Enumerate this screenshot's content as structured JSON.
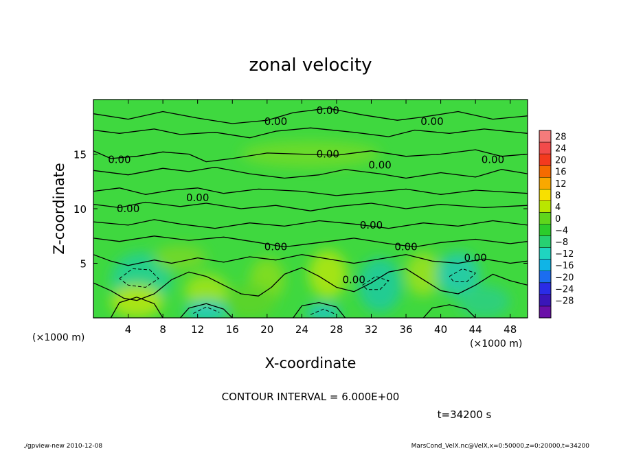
{
  "chart_data": {
    "type": "heatmap",
    "title": "zonal velocity",
    "xlabel": "X-coordinate",
    "ylabel": "Z-coordinate",
    "x_unit": "(×1000 m)",
    "y_unit": "(×1000 m)",
    "xlim": [
      0,
      50
    ],
    "ylim": [
      0,
      20
    ],
    "x_ticks": [
      4,
      8,
      12,
      16,
      20,
      24,
      28,
      32,
      36,
      40,
      44,
      48
    ],
    "y_ticks": [
      5,
      10,
      15
    ],
    "contour_interval_text": "CONTOUR INTERVAL = 6.000E+00",
    "time_text": "t=34200 s",
    "contour_label": "0.00",
    "contour_label_positions": [
      [
        27,
        19
      ],
      [
        21,
        18
      ],
      [
        39,
        18
      ],
      [
        3,
        14.5
      ],
      [
        27,
        15
      ],
      [
        33,
        14
      ],
      [
        46,
        14.5
      ],
      [
        12,
        11
      ],
      [
        4,
        10
      ],
      [
        32,
        8.5
      ],
      [
        21,
        6.5
      ],
      [
        36,
        6.5
      ],
      [
        44,
        5.5
      ],
      [
        30,
        3.5
      ]
    ],
    "colorbar": {
      "levels": [
        28,
        24,
        20,
        16,
        12,
        8,
        4,
        0,
        -4,
        -8,
        -12,
        -16,
        -20,
        -24,
        -28
      ],
      "colors": [
        "#f47b7b",
        "#f24a4a",
        "#f43a1e",
        "#f56b00",
        "#f9a800",
        "#f8e000",
        "#b9e600",
        "#5fd61c",
        "#2bcc2b",
        "#27d072",
        "#1fd4c0",
        "#10b4e6",
        "#1b6df0",
        "#2a2ce6",
        "#3a16b9",
        "#6a10a8"
      ]
    },
    "field_base_color": "#3fd83f",
    "blobs": [
      {
        "x": 5.5,
        "z": 3.5,
        "rx": 3.5,
        "rz": 2.5,
        "color": "#28d08a"
      },
      {
        "x": 13,
        "z": 2.5,
        "rx": 2.5,
        "rz": 1.5,
        "color": "#95e21c"
      },
      {
        "x": 5,
        "z": 1.5,
        "rx": 3,
        "rz": 1.5,
        "color": "#a8e416"
      },
      {
        "x": 13,
        "z": 0.6,
        "rx": 2.5,
        "rz": 1.0,
        "color": "#22ccb0"
      },
      {
        "x": 20,
        "z": 3.5,
        "rx": 2,
        "rz": 2,
        "color": "#7ddc24"
      },
      {
        "x": 27,
        "z": 4,
        "rx": 2.2,
        "rz": 2.2,
        "color": "#a3e418"
      },
      {
        "x": 26.5,
        "z": 0.5,
        "rx": 2,
        "rz": 0.8,
        "color": "#24c8b8"
      },
      {
        "x": 33,
        "z": 3,
        "rx": 2.5,
        "rz": 2.5,
        "color": "#24cc92"
      },
      {
        "x": 38,
        "z": 4,
        "rx": 2,
        "rz": 2,
        "color": "#90e020"
      },
      {
        "x": 42,
        "z": 4,
        "rx": 2.5,
        "rz": 2,
        "color": "#26cca2"
      },
      {
        "x": 45,
        "z": 1.5,
        "rx": 3,
        "rz": 1.5,
        "color": "#2fd07a"
      },
      {
        "x": 18,
        "z": 1.5,
        "rx": 3,
        "rz": 1.5,
        "color": "#5ad42c"
      },
      {
        "x": 10,
        "z": 5.5,
        "rx": 3,
        "rz": 1.2,
        "color": "#6fd82a"
      },
      {
        "x": 25,
        "z": 15,
        "rx": 8,
        "rz": 1.2,
        "color": "#6bdb2c"
      }
    ],
    "contours": [
      [
        [
          0,
          18.7
        ],
        [
          4,
          18.2
        ],
        [
          8,
          18.9
        ],
        [
          12,
          18.3
        ],
        [
          16,
          17.8
        ],
        [
          20,
          18.1
        ],
        [
          23,
          18.8
        ],
        [
          27,
          19.2
        ],
        [
          31,
          18.6
        ],
        [
          35,
          18.1
        ],
        [
          38,
          18.4
        ],
        [
          42,
          18.9
        ],
        [
          46,
          18.2
        ],
        [
          50,
          18.5
        ]
      ],
      [
        [
          0,
          17.2
        ],
        [
          3,
          16.9
        ],
        [
          7,
          17.3
        ],
        [
          10,
          16.8
        ],
        [
          14,
          17.0
        ],
        [
          18,
          16.5
        ],
        [
          21,
          17.1
        ],
        [
          25,
          17.4
        ],
        [
          30,
          17.0
        ],
        [
          34,
          16.6
        ],
        [
          37,
          17.2
        ],
        [
          41,
          16.9
        ],
        [
          45,
          17.3
        ],
        [
          50,
          16.9
        ]
      ],
      [
        [
          0,
          15.3
        ],
        [
          2,
          14.6
        ],
        [
          5,
          14.8
        ],
        [
          8,
          15.2
        ],
        [
          11,
          15.0
        ],
        [
          13,
          14.3
        ],
        [
          16,
          14.6
        ],
        [
          20,
          15.1
        ],
        [
          24,
          15.0
        ],
        [
          28,
          14.9
        ],
        [
          32,
          15.3
        ],
        [
          36,
          14.8
        ],
        [
          40,
          15.0
        ],
        [
          44,
          15.4
        ],
        [
          47,
          14.8
        ],
        [
          50,
          15.0
        ]
      ],
      [
        [
          0,
          13.5
        ],
        [
          4,
          13.1
        ],
        [
          8,
          13.7
        ],
        [
          11,
          13.4
        ],
        [
          14,
          13.8
        ],
        [
          18,
          13.2
        ],
        [
          22,
          12.8
        ],
        [
          26,
          13.1
        ],
        [
          29,
          13.6
        ],
        [
          33,
          13.2
        ],
        [
          36,
          12.8
        ],
        [
          40,
          13.3
        ],
        [
          44,
          12.9
        ],
        [
          47,
          13.6
        ],
        [
          50,
          13.2
        ]
      ],
      [
        [
          0,
          11.6
        ],
        [
          3,
          11.9
        ],
        [
          6,
          11.3
        ],
        [
          9,
          11.7
        ],
        [
          12,
          11.9
        ],
        [
          15,
          11.4
        ],
        [
          19,
          11.8
        ],
        [
          24,
          11.6
        ],
        [
          28,
          11.2
        ],
        [
          32,
          11.5
        ],
        [
          36,
          11.8
        ],
        [
          40,
          11.3
        ],
        [
          44,
          11.7
        ],
        [
          50,
          11.4
        ]
      ],
      [
        [
          0,
          10.4
        ],
        [
          3,
          10.1
        ],
        [
          6,
          10.6
        ],
        [
          10,
          10.2
        ],
        [
          13,
          10.5
        ],
        [
          17,
          10.0
        ],
        [
          21,
          10.3
        ],
        [
          25,
          9.8
        ],
        [
          28,
          10.2
        ],
        [
          32,
          10.5
        ],
        [
          36,
          10.0
        ],
        [
          40,
          10.4
        ],
        [
          45,
          10.1
        ],
        [
          50,
          10.3
        ]
      ],
      [
        [
          0,
          8.8
        ],
        [
          4,
          8.5
        ],
        [
          7,
          9.0
        ],
        [
          10,
          8.6
        ],
        [
          14,
          8.2
        ],
        [
          18,
          8.7
        ],
        [
          22,
          8.4
        ],
        [
          26,
          8.9
        ],
        [
          30,
          8.6
        ],
        [
          34,
          8.2
        ],
        [
          38,
          8.7
        ],
        [
          42,
          8.4
        ],
        [
          46,
          8.9
        ],
        [
          50,
          8.5
        ]
      ],
      [
        [
          0,
          7.3
        ],
        [
          3,
          7.0
        ],
        [
          7,
          7.5
        ],
        [
          11,
          7.1
        ],
        [
          15,
          7.4
        ],
        [
          19,
          6.9
        ],
        [
          22,
          6.5
        ],
        [
          26,
          6.9
        ],
        [
          30,
          7.3
        ],
        [
          34,
          6.8
        ],
        [
          37,
          6.5
        ],
        [
          40,
          6.9
        ],
        [
          44,
          7.2
        ],
        [
          48,
          6.8
        ],
        [
          50,
          7.0
        ]
      ],
      [
        [
          0,
          5.8
        ],
        [
          2,
          5.2
        ],
        [
          4,
          4.8
        ],
        [
          7,
          5.3
        ],
        [
          9,
          5.0
        ],
        [
          12,
          5.5
        ],
        [
          15,
          5.1
        ],
        [
          18,
          5.6
        ],
        [
          21,
          5.3
        ],
        [
          24,
          5.8
        ],
        [
          27,
          5.4
        ],
        [
          30,
          5.0
        ],
        [
          33,
          5.4
        ],
        [
          36,
          5.8
        ],
        [
          39,
          5.2
        ],
        [
          42,
          5.0
        ],
        [
          45,
          5.4
        ],
        [
          48,
          5.0
        ],
        [
          50,
          5.2
        ]
      ],
      [
        [
          0,
          3.2
        ],
        [
          2,
          2.5
        ],
        [
          3.5,
          1.8
        ],
        [
          5,
          1.6
        ],
        [
          7,
          2.2
        ],
        [
          9,
          3.5
        ],
        [
          11,
          4.2
        ],
        [
          13,
          3.8
        ],
        [
          15,
          3.0
        ],
        [
          17,
          2.2
        ],
        [
          19,
          2.0
        ],
        [
          20.5,
          2.8
        ],
        [
          22,
          4.0
        ],
        [
          24,
          4.6
        ],
        [
          26,
          3.8
        ],
        [
          28,
          2.8
        ],
        [
          30,
          2.4
        ],
        [
          32,
          3.2
        ],
        [
          34,
          4.2
        ],
        [
          36,
          4.5
        ],
        [
          38,
          3.5
        ],
        [
          40,
          2.5
        ],
        [
          42,
          2.2
        ],
        [
          44,
          3.0
        ],
        [
          46,
          4.0
        ],
        [
          48,
          3.4
        ],
        [
          50,
          3.0
        ]
      ],
      [
        [
          2,
          0
        ],
        [
          3,
          1.4
        ],
        [
          5,
          1.9
        ],
        [
          7,
          1.3
        ],
        [
          8,
          0
        ]
      ],
      [
        [
          10,
          0
        ],
        [
          11,
          0.9
        ],
        [
          13,
          1.3
        ],
        [
          15,
          0.8
        ],
        [
          16,
          0
        ]
      ],
      [
        [
          23,
          0
        ],
        [
          24,
          1.1
        ],
        [
          26,
          1.4
        ],
        [
          28,
          1.0
        ],
        [
          29,
          0
        ]
      ],
      [
        [
          38,
          0
        ],
        [
          39,
          0.9
        ],
        [
          41,
          1.2
        ],
        [
          43,
          0.8
        ],
        [
          44,
          0
        ]
      ]
    ],
    "dashed_contours": [
      [
        [
          3,
          3.6
        ],
        [
          4.5,
          4.5
        ],
        [
          6.5,
          4.4
        ],
        [
          7.5,
          3.6
        ],
        [
          6,
          2.8
        ],
        [
          4,
          3.0
        ],
        [
          3,
          3.6
        ]
      ],
      [
        [
          11.5,
          0.4
        ],
        [
          13,
          1.0
        ],
        [
          14.5,
          0.5
        ]
      ],
      [
        [
          25,
          0.3
        ],
        [
          26.5,
          0.8
        ],
        [
          28,
          0.3
        ]
      ],
      [
        [
          31,
          3.0
        ],
        [
          32.5,
          3.8
        ],
        [
          34,
          3.4
        ],
        [
          33,
          2.6
        ],
        [
          31.5,
          2.6
        ],
        [
          31,
          3.0
        ]
      ],
      [
        [
          41,
          3.8
        ],
        [
          42.5,
          4.5
        ],
        [
          44,
          4.1
        ],
        [
          43,
          3.3
        ],
        [
          41.5,
          3.3
        ],
        [
          41,
          3.8
        ]
      ]
    ]
  },
  "footer": {
    "left": "./gpview-new   2010-12-08",
    "right": "MarsCond_VelX.nc@VelX,x=0:50000,z=0:20000,t=34200"
  }
}
